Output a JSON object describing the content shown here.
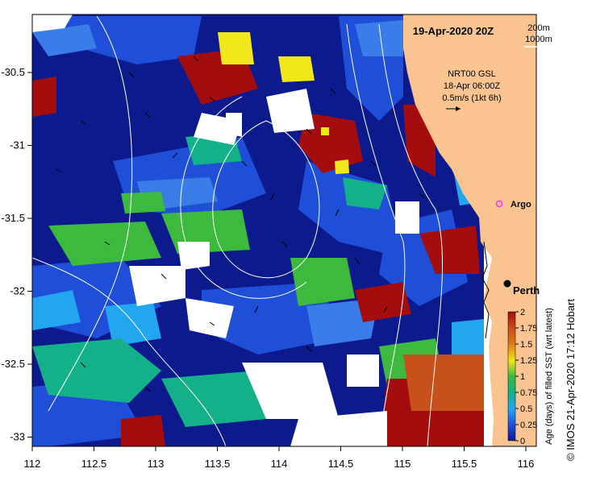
{
  "map": {
    "title": "19-Apr-2020 20Z",
    "contour_legend": [
      "200m",
      "1000m"
    ],
    "current_source": "NRT00 GSL",
    "current_time": "18-Apr 06:00Z",
    "current_scale": "0.5m/s (1kt 6h)",
    "lon_ticks": [
      "112",
      "112.5",
      "113",
      "113.5",
      "114",
      "114.5",
      "115",
      "115.5",
      "116"
    ],
    "lat_ticks": [
      "-30.5",
      "-31",
      "-31.5",
      "-32",
      "-32.5",
      "-33"
    ],
    "places": {
      "argo": "Argo",
      "perth": "Perth"
    },
    "colorbar": {
      "label": "Age (days) of filled SST (wrt latest)",
      "ticks": [
        "0",
        "0.25",
        "0.5",
        "0.75",
        "1",
        "1.25",
        "1.5",
        "1.75",
        "2"
      ]
    },
    "credit": "©  IMOS 21-Apr-2020 17:12 Hobart",
    "colors": {
      "land": "#f9c48f",
      "navy": "#0d1a8e",
      "blue": "#1f4ed8",
      "mid_blue": "#3b7de8",
      "light_blue": "#22a6f0",
      "teal": "#14b08a",
      "green": "#3dba3d",
      "yellow": "#f0e61a",
      "dark_red": "#a40d0d",
      "orange_red": "#c8501a",
      "argo": "#ff33ff"
    }
  }
}
